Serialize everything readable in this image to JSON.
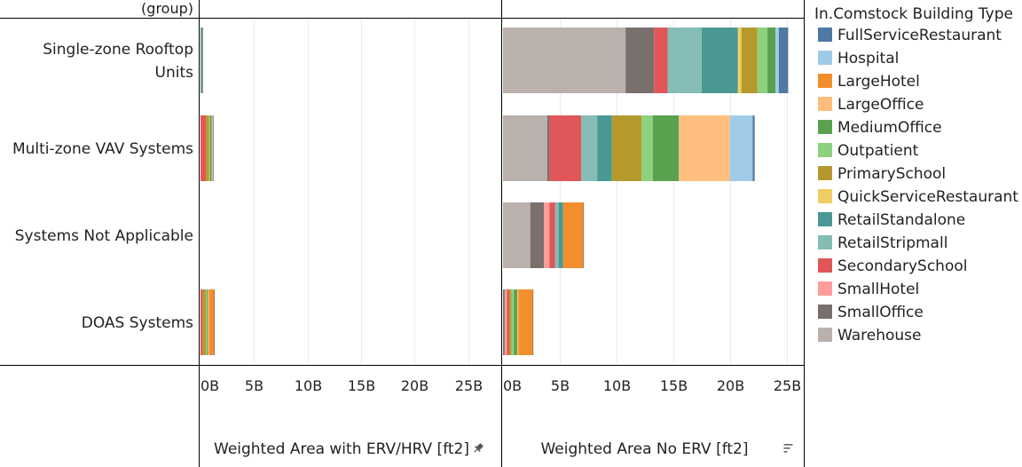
{
  "chart_data": {
    "type": "bar",
    "orientation": "horizontal",
    "stacked": true,
    "row_header": "(group)",
    "categories": [
      "Single-zone Rooftop Units",
      "Multi-zone VAV Systems",
      "Systems Not Applicable",
      "DOAS Systems"
    ],
    "category_lines": [
      [
        "Single-zone Rooftop",
        "Units"
      ],
      [
        "Multi-zone VAV Systems"
      ],
      [
        "Systems Not Applicable"
      ],
      [
        "DOAS Systems"
      ]
    ],
    "panels": [
      {
        "xlabel": "Weighted Area with ERV/HRV [ft2]",
        "xlabel_icon": "pin-icon",
        "xlim": [
          0,
          28
        ],
        "ticks": [
          0,
          5,
          10,
          15,
          20,
          25
        ],
        "tick_labels": [
          "0B",
          "5B",
          "10B",
          "15B",
          "20B",
          "25B"
        ],
        "units": "billions of ft2"
      },
      {
        "xlabel": "Weighted Area No ERV [ft2]",
        "xlabel_icon": "sort-descending-icon",
        "xlim": [
          0,
          26.5
        ],
        "ticks": [
          0,
          5,
          10,
          15,
          20,
          25
        ],
        "tick_labels": [
          "0B",
          "5B",
          "10B",
          "15B",
          "20B",
          "25B"
        ],
        "units": "billions of ft2"
      }
    ],
    "legend": {
      "title": "In.Comstock Building Type",
      "position": "right",
      "items": [
        {
          "name": "FullServiceRestaurant",
          "color": "#4e79a7"
        },
        {
          "name": "Hospital",
          "color": "#a0cbe8"
        },
        {
          "name": "LargeHotel",
          "color": "#f28e2b"
        },
        {
          "name": "LargeOffice",
          "color": "#ffbe7d"
        },
        {
          "name": "MediumOffice",
          "color": "#59a14f"
        },
        {
          "name": "Outpatient",
          "color": "#8cd17d"
        },
        {
          "name": "PrimarySchool",
          "color": "#b6992d"
        },
        {
          "name": "QuickServiceRestaurant",
          "color": "#f1ce63"
        },
        {
          "name": "RetailStandalone",
          "color": "#499894"
        },
        {
          "name": "RetailStripmall",
          "color": "#86bcb6"
        },
        {
          "name": "SecondarySchool",
          "color": "#e15759"
        },
        {
          "name": "SmallHotel",
          "color": "#ff9d9a"
        },
        {
          "name": "SmallOffice",
          "color": "#79706e"
        },
        {
          "name": "Warehouse",
          "color": "#bab0ac"
        }
      ]
    },
    "stack_order": [
      "Warehouse",
      "SmallOffice",
      "SmallHotel",
      "SecondarySchool",
      "RetailStripmall",
      "RetailStandalone",
      "QuickServiceRestaurant",
      "PrimarySchool",
      "Outpatient",
      "MediumOffice",
      "LargeOffice",
      "LargeHotel",
      "Hospital",
      "FullServiceRestaurant"
    ],
    "series": [
      {
        "name": "Warehouse",
        "erv": [
          0.0,
          0.0,
          0.0,
          0.0
        ],
        "no_erv": [
          10.8,
          3.9,
          2.4,
          0.0
        ]
      },
      {
        "name": "SmallOffice",
        "erv": [
          0.05,
          0.0,
          0.0,
          0.0
        ],
        "no_erv": [
          2.5,
          0.2,
          1.2,
          0.15
        ]
      },
      {
        "name": "SmallHotel",
        "erv": [
          0.0,
          0.0,
          0.0,
          0.0
        ],
        "no_erv": [
          0.0,
          0.0,
          0.5,
          0.2
        ]
      },
      {
        "name": "SecondarySchool",
        "erv": [
          0.0,
          0.5,
          0.0,
          0.2
        ],
        "no_erv": [
          1.2,
          2.8,
          0.5,
          0.2
        ]
      },
      {
        "name": "RetailStripmall",
        "erv": [
          0.05,
          0.0,
          0.0,
          0.0
        ],
        "no_erv": [
          3.0,
          1.4,
          0.3,
          0.0
        ]
      },
      {
        "name": "RetailStandalone",
        "erv": [
          0.05,
          0.0,
          0.0,
          0.0
        ],
        "no_erv": [
          3.2,
          1.3,
          0.4,
          0.0
        ]
      },
      {
        "name": "QuickServiceRestaurant",
        "erv": [
          0.0,
          0.0,
          0.0,
          0.0
        ],
        "no_erv": [
          0.3,
          0.0,
          0.0,
          0.0
        ]
      },
      {
        "name": "PrimarySchool",
        "erv": [
          0.0,
          0.3,
          0.0,
          0.3
        ],
        "no_erv": [
          1.4,
          2.6,
          0.0,
          0.2
        ]
      },
      {
        "name": "Outpatient",
        "erv": [
          0.05,
          0.1,
          0.0,
          0.1
        ],
        "no_erv": [
          0.9,
          1.0,
          0.0,
          0.2
        ]
      },
      {
        "name": "MediumOffice",
        "erv": [
          0.0,
          0.1,
          0.0,
          0.1
        ],
        "no_erv": [
          0.7,
          2.3,
          0.0,
          0.3
        ]
      },
      {
        "name": "LargeOffice",
        "erv": [
          0.0,
          0.0,
          0.0,
          0.1
        ],
        "no_erv": [
          0.0,
          4.5,
          0.0,
          0.1
        ]
      },
      {
        "name": "LargeHotel",
        "erv": [
          0.0,
          0.1,
          0.0,
          0.5
        ],
        "no_erv": [
          0.0,
          0.0,
          1.8,
          1.3
        ]
      },
      {
        "name": "Hospital",
        "erv": [
          0.0,
          0.1,
          0.0,
          0.0
        ],
        "no_erv": [
          0.3,
          2.0,
          0.0,
          0.0
        ]
      },
      {
        "name": "FullServiceRestaurant",
        "erv": [
          0.0,
          0.0,
          0.0,
          0.0
        ],
        "no_erv": [
          0.8,
          0.15,
          0.0,
          0.0
        ]
      }
    ]
  }
}
